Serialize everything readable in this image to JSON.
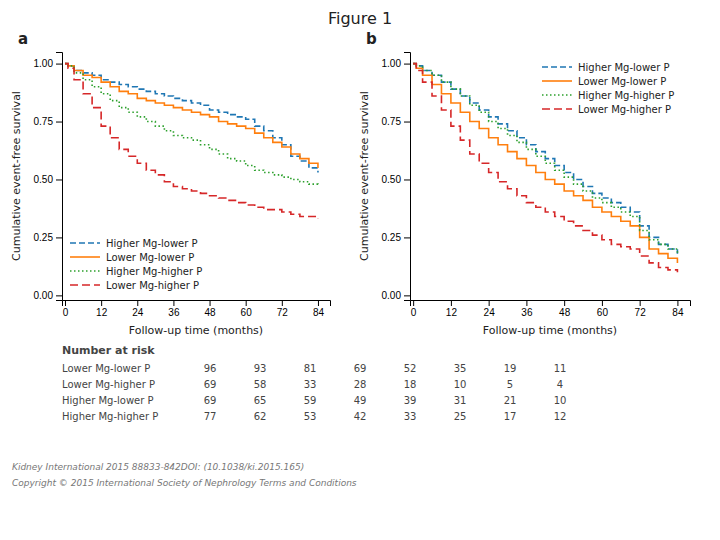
{
  "title": "Figure 1",
  "chart_data": [
    {
      "type": "line",
      "title": "a",
      "x_label": "Follow-up time (months)",
      "y_label": "Cumulative event-free survival",
      "xlim": [
        -1,
        88
      ],
      "ylim": [
        -0.02,
        1.05
      ],
      "xticks": [
        0,
        12,
        24,
        36,
        48,
        60,
        72,
        84
      ],
      "yticks": [
        {
          "value": 0.0,
          "label": "0.00"
        },
        {
          "value": 0.25,
          "label": "0.25"
        },
        {
          "value": 0.5,
          "label": "0.50"
        },
        {
          "value": 0.75,
          "label": "0.75"
        },
        {
          "value": 1.0,
          "label": "1.00"
        }
      ],
      "legend": "lower left",
      "x": [
        0,
        1,
        3,
        6,
        9,
        12,
        15,
        18,
        21,
        24,
        27,
        30,
        33,
        36,
        39,
        42,
        45,
        48,
        51,
        54,
        57,
        60,
        63,
        66,
        69,
        72,
        75,
        78,
        81,
        84
      ],
      "series": [
        {
          "name": "Higher Mg-lower P",
          "line_style": "dash_dot",
          "values": [
            1.0,
            0.99,
            0.97,
            0.96,
            0.95,
            0.93,
            0.92,
            0.91,
            0.9,
            0.89,
            0.88,
            0.87,
            0.86,
            0.85,
            0.84,
            0.83,
            0.82,
            0.8,
            0.79,
            0.78,
            0.77,
            0.76,
            0.73,
            0.71,
            0.68,
            0.65,
            0.6,
            0.58,
            0.55,
            0.53
          ]
        },
        {
          "name": "Lower Mg-lower P",
          "line_style": "solid",
          "values": [
            1.0,
            0.99,
            0.97,
            0.95,
            0.94,
            0.92,
            0.9,
            0.88,
            0.87,
            0.85,
            0.84,
            0.83,
            0.82,
            0.81,
            0.8,
            0.79,
            0.78,
            0.77,
            0.75,
            0.74,
            0.73,
            0.72,
            0.7,
            0.68,
            0.66,
            0.64,
            0.61,
            0.59,
            0.57,
            0.55
          ]
        },
        {
          "name": "Higher Mg-higher P",
          "line_style": "dotted",
          "values": [
            1.0,
            0.99,
            0.96,
            0.93,
            0.9,
            0.87,
            0.84,
            0.81,
            0.79,
            0.77,
            0.75,
            0.73,
            0.71,
            0.69,
            0.68,
            0.67,
            0.65,
            0.63,
            0.61,
            0.59,
            0.58,
            0.56,
            0.54,
            0.53,
            0.52,
            0.51,
            0.5,
            0.49,
            0.48,
            0.47
          ]
        },
        {
          "name": "Lower Mg-higher P",
          "line_style": "long_dash",
          "values": [
            1.0,
            0.98,
            0.93,
            0.87,
            0.81,
            0.73,
            0.68,
            0.63,
            0.6,
            0.57,
            0.54,
            0.52,
            0.49,
            0.47,
            0.46,
            0.45,
            0.44,
            0.43,
            0.42,
            0.41,
            0.4,
            0.39,
            0.38,
            0.37,
            0.37,
            0.36,
            0.35,
            0.34,
            0.34,
            0.33
          ]
        }
      ]
    },
    {
      "type": "line",
      "title": "b",
      "x_label": "Follow-up time (months)",
      "y_label": "Cumulative event-free survival",
      "xlim": [
        -1,
        88
      ],
      "ylim": [
        -0.02,
        1.05
      ],
      "xticks": [
        0,
        12,
        24,
        36,
        48,
        60,
        72,
        84
      ],
      "yticks": [
        {
          "value": 0.0,
          "label": "0.00"
        },
        {
          "value": 0.25,
          "label": "0.25"
        },
        {
          "value": 0.5,
          "label": "0.50"
        },
        {
          "value": 0.75,
          "label": "0.75"
        },
        {
          "value": 1.0,
          "label": "1.00"
        }
      ],
      "legend": "upper right",
      "x": [
        0,
        1,
        3,
        6,
        9,
        12,
        15,
        18,
        21,
        24,
        27,
        30,
        33,
        36,
        39,
        42,
        45,
        48,
        51,
        54,
        57,
        60,
        63,
        66,
        69,
        72,
        75,
        78,
        81,
        84
      ],
      "series": [
        {
          "name": "Higher Mg-lower P",
          "line_style": "dash_dot",
          "values": [
            1.0,
            0.99,
            0.97,
            0.95,
            0.92,
            0.89,
            0.86,
            0.83,
            0.8,
            0.77,
            0.74,
            0.71,
            0.68,
            0.65,
            0.62,
            0.59,
            0.56,
            0.53,
            0.5,
            0.47,
            0.44,
            0.42,
            0.4,
            0.38,
            0.36,
            0.3,
            0.25,
            0.22,
            0.2,
            0.18
          ]
        },
        {
          "name": "Lower Mg-lower P",
          "line_style": "solid",
          "values": [
            1.0,
            0.98,
            0.95,
            0.91,
            0.87,
            0.83,
            0.79,
            0.75,
            0.72,
            0.68,
            0.65,
            0.62,
            0.59,
            0.56,
            0.53,
            0.5,
            0.48,
            0.45,
            0.43,
            0.41,
            0.38,
            0.36,
            0.34,
            0.32,
            0.3,
            0.25,
            0.2,
            0.18,
            0.16,
            0.14
          ]
        },
        {
          "name": "Higher Mg-higher P",
          "line_style": "dotted",
          "values": [
            1.0,
            0.99,
            0.97,
            0.95,
            0.92,
            0.89,
            0.86,
            0.82,
            0.79,
            0.75,
            0.72,
            0.69,
            0.66,
            0.63,
            0.6,
            0.57,
            0.54,
            0.51,
            0.48,
            0.45,
            0.42,
            0.4,
            0.38,
            0.36,
            0.34,
            0.28,
            0.24,
            0.22,
            0.2,
            0.18
          ]
        },
        {
          "name": "Lower Mg-higher P",
          "line_style": "long_dash",
          "values": [
            1.0,
            0.97,
            0.92,
            0.86,
            0.8,
            0.73,
            0.67,
            0.61,
            0.57,
            0.53,
            0.49,
            0.46,
            0.43,
            0.4,
            0.38,
            0.36,
            0.34,
            0.32,
            0.3,
            0.28,
            0.26,
            0.24,
            0.22,
            0.21,
            0.2,
            0.17,
            0.14,
            0.12,
            0.11,
            0.1
          ]
        }
      ]
    }
  ],
  "number_at_risk": {
    "header": "Number at risk",
    "rows": [
      {
        "label": "Lower Mg-lower P",
        "values": [
          96,
          93,
          81,
          69,
          52,
          35,
          19,
          11
        ]
      },
      {
        "label": "Lower Mg-higher P",
        "values": [
          69,
          58,
          33,
          28,
          18,
          10,
          5,
          4
        ]
      },
      {
        "label": "Higher Mg-lower P",
        "values": [
          69,
          65,
          59,
          49,
          39,
          31,
          21,
          10
        ]
      },
      {
        "label": "Higher Mg-higher P",
        "values": [
          77,
          62,
          53,
          42,
          33,
          25,
          17,
          12
        ]
      }
    ]
  },
  "annotations": [
    "Kidney International 2015 88833-842DOI: (10.1038/ki.2015.165)",
    "Copyright © 2015 International Society of Nephrology Terms and Conditions"
  ]
}
